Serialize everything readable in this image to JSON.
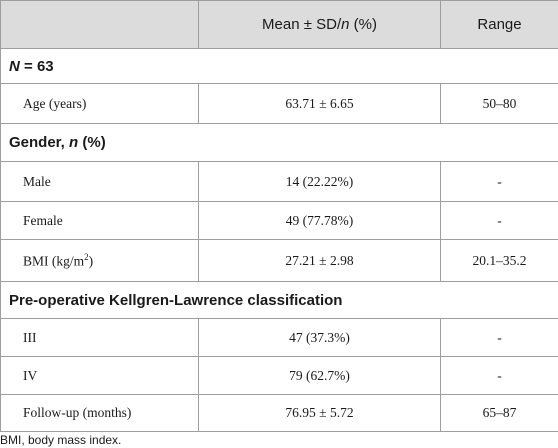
{
  "table": {
    "header": {
      "mean": [
        "Mean ± SD/",
        "n",
        " (%)"
      ],
      "range": "Range"
    },
    "sections": [
      {
        "title": [
          "N",
          " = 63"
        ],
        "rows": [
          [
            "Age (years)",
            "63.71 ± 6.65",
            "50–80"
          ]
        ]
      },
      {
        "title": [
          "Gender, ",
          "n",
          " (%)"
        ],
        "rows": [
          [
            "Male",
            "14 (22.22%)",
            "-"
          ],
          [
            "Female",
            "49 (77.78%)",
            "-"
          ],
          [
            [
              "BMI (kg/m",
              "2",
              ")"
            ],
            "27.21 ± 2.98",
            "20.1–35.2"
          ]
        ]
      },
      {
        "title": [
          "Pre-operative Kellgren-Lawrence classification"
        ],
        "rows": [
          [
            "III",
            "47 (37.3%)",
            "-"
          ],
          [
            "IV",
            "79 (62.7%)",
            "-"
          ],
          [
            "Follow-up (months)",
            "76.95 ± 5.72",
            "65–87"
          ]
        ]
      }
    ],
    "footnote": "BMI, body mass index."
  }
}
